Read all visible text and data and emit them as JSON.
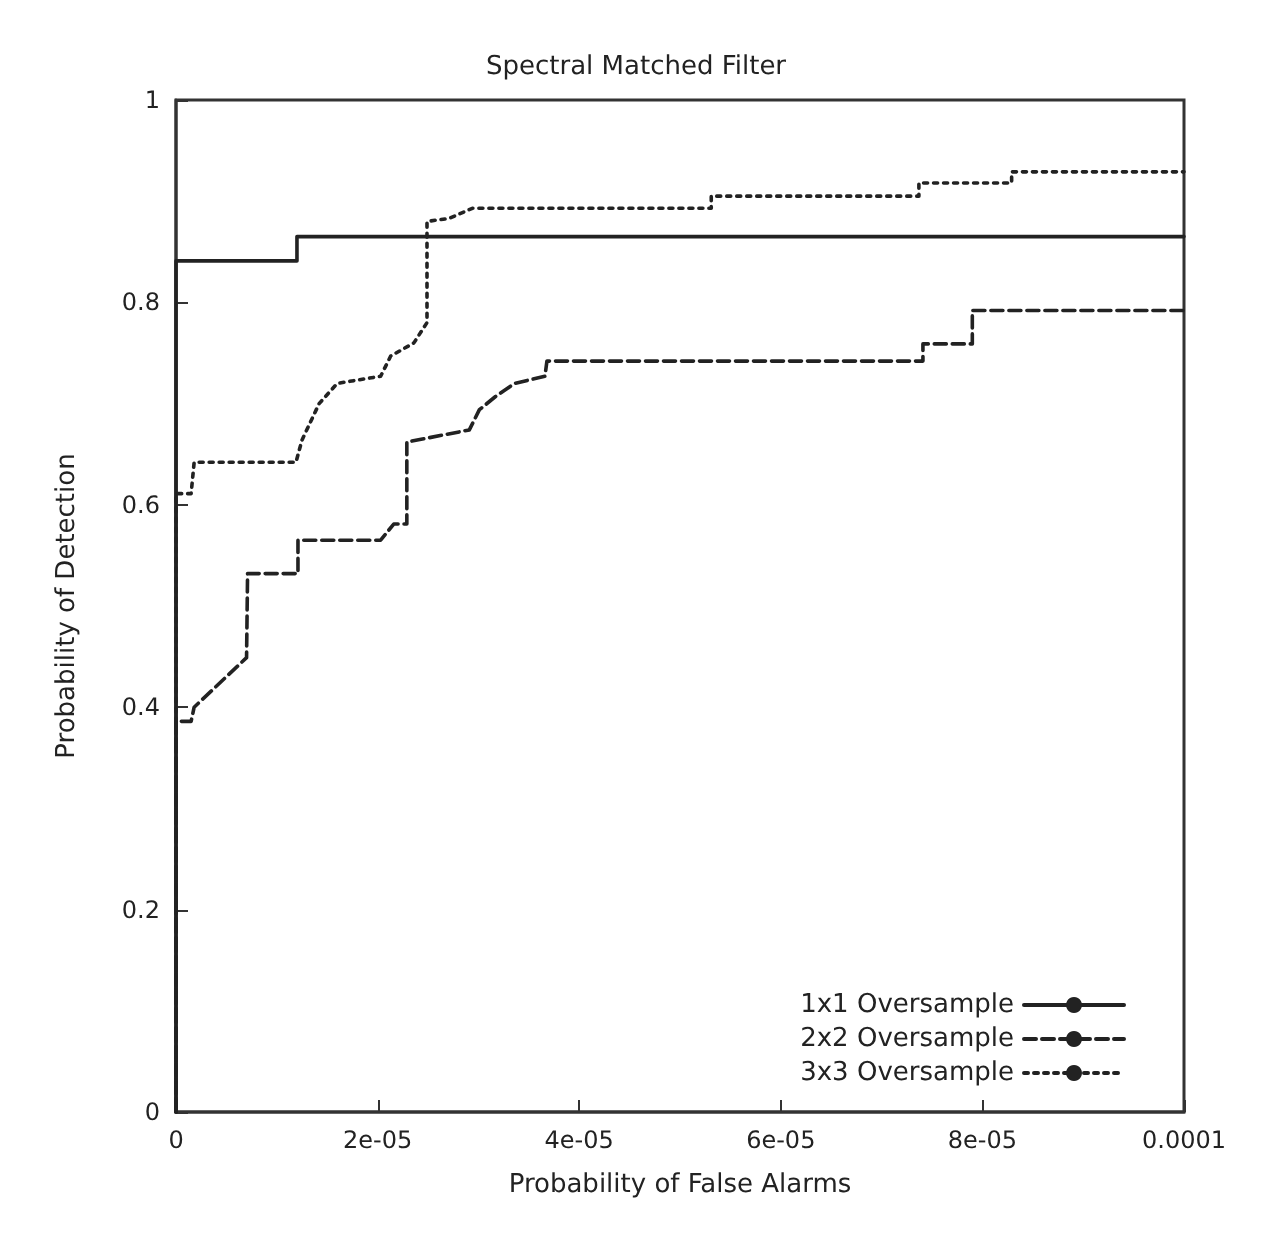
{
  "chart_data": {
    "type": "line",
    "title": "Spectral Matched Filter",
    "xlabel": "Probability of False Alarms",
    "ylabel": "Probability of Detection",
    "xlim": [
      0,
      0.0001
    ],
    "xticks": [
      0,
      {
        "value": 2e-05,
        "label": "2e-05"
      },
      {
        "value": 4e-05,
        "label": "4e-05"
      },
      {
        "value": 6e-05,
        "label": "6e-05"
      },
      {
        "value": 8e-05,
        "label": "8e-05"
      },
      0.0001
    ],
    "ylim": [
      0,
      1
    ],
    "yticks": [
      0,
      0.2,
      0.4,
      0.6,
      0.8,
      1
    ],
    "grid": false,
    "legend": "bottom right",
    "marker": "none",
    "series": [
      {
        "name": "1x1 Oversample",
        "color": "#222222",
        "line_style": "solid",
        "x": [
          0,
          0,
          1.2e-05,
          1.2e-05,
          0.0001
        ],
        "values": [
          0,
          0.841,
          0.841,
          0.865,
          0.865
        ]
      },
      {
        "name": "2x2 Oversample",
        "color": "#222222",
        "line_style": "dashed",
        "x": [
          0,
          0,
          1.5e-06,
          1.8e-06,
          7e-06,
          7.1e-06,
          1.21e-05,
          1.21e-05,
          2.03e-05,
          2.16e-05,
          2.29e-05,
          2.29e-05,
          2.91e-05,
          3.01e-05,
          3.17e-05,
          3.36e-05,
          3.66e-05,
          3.68e-05,
          7.41e-05,
          7.41e-05,
          7.9e-05,
          7.9e-05,
          0.0001
        ],
        "values": [
          0,
          0.386,
          0.386,
          0.4,
          0.449,
          0.532,
          0.532,
          0.565,
          0.565,
          0.581,
          0.581,
          0.662,
          0.674,
          0.694,
          0.707,
          0.72,
          0.727,
          0.742,
          0.742,
          0.759,
          0.759,
          0.792,
          0.792
        ]
      },
      {
        "name": "3x3 Oversample",
        "color": "#222222",
        "line_style": "dotted",
        "x": [
          0,
          0,
          1.5e-06,
          1.8e-06,
          1.19e-05,
          1.25e-05,
          1.42e-05,
          1.6e-05,
          2.03e-05,
          2.13e-05,
          2.36e-05,
          2.49e-05,
          2.49e-05,
          2.71e-05,
          2.94e-05,
          5.31e-05,
          5.31e-05,
          7.37e-05,
          7.37e-05,
          8.29e-05,
          8.29e-05,
          0.0001
        ],
        "values": [
          0,
          0.611,
          0.611,
          0.642,
          0.642,
          0.664,
          0.7,
          0.72,
          0.727,
          0.747,
          0.76,
          0.78,
          0.88,
          0.883,
          0.893,
          0.893,
          0.905,
          0.905,
          0.918,
          0.918,
          0.929,
          0.929
        ]
      }
    ]
  }
}
